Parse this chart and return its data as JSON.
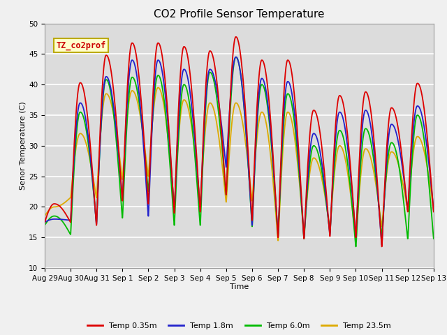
{
  "title": "CO2 Profile Sensor Temperature",
  "xlabel": "Time",
  "ylabel": "Senor Temperature (C)",
  "ylim": [
    10,
    50
  ],
  "background_color": "#dcdcdc",
  "grid_color": "#ffffff",
  "annotation_text": "TZ_co2prof",
  "annotation_bg": "#ffffcc",
  "annotation_border": "#bbaa00",
  "annotation_text_color": "#cc0000",
  "legend_entries": [
    "Temp 0.35m",
    "Temp 1.8m",
    "Temp 6.0m",
    "Temp 23.5m"
  ],
  "line_colors": [
    "#dd0000",
    "#2222cc",
    "#00bb00",
    "#ddaa00"
  ],
  "xtick_labels": [
    "Aug 29",
    "Aug 30",
    "Aug 31",
    "Sep 1",
    "Sep 2",
    "Sep 3",
    "Sep 4",
    "Sep 5",
    "Sep 6",
    "Sep 7",
    "Sep 8",
    "Sep 9",
    "Sep 10",
    "Sep 11",
    "Sep 12",
    "Sep 13"
  ],
  "n_cycles": 15,
  "peaks_red": [
    20.5,
    40.3,
    44.8,
    46.8,
    46.8,
    46.2,
    45.5,
    47.8,
    44.0,
    44.0,
    35.8,
    38.2,
    38.8,
    36.2,
    40.2
  ],
  "troughs_red": [
    17.5,
    17.5,
    17.0,
    21.0,
    20.5,
    19.0,
    19.2,
    22.0,
    17.8,
    15.0,
    14.8,
    15.2,
    15.0,
    13.5,
    19.2
  ],
  "peaks_blue": [
    18.0,
    37.0,
    41.3,
    44.0,
    44.0,
    42.5,
    42.5,
    44.5,
    41.0,
    40.5,
    32.0,
    35.5,
    35.8,
    33.5,
    36.5
  ],
  "troughs_blue": [
    17.5,
    17.8,
    17.2,
    21.3,
    18.5,
    19.5,
    19.5,
    26.5,
    17.0,
    15.5,
    15.0,
    15.5,
    15.2,
    13.8,
    19.5
  ],
  "peaks_green": [
    18.5,
    35.5,
    40.8,
    41.2,
    41.5,
    40.0,
    42.0,
    44.5,
    40.0,
    38.5,
    30.0,
    32.5,
    32.8,
    30.5,
    35.0
  ],
  "troughs_green": [
    17.0,
    15.5,
    17.5,
    18.2,
    22.5,
    17.0,
    17.0,
    22.0,
    16.8,
    15.2,
    14.8,
    15.8,
    13.5,
    15.2,
    14.8
  ],
  "peaks_orange": [
    20.0,
    32.0,
    38.5,
    39.0,
    39.5,
    37.5,
    37.0,
    37.0,
    35.5,
    35.5,
    28.0,
    30.0,
    29.5,
    29.0,
    31.5
  ],
  "troughs_orange": [
    18.5,
    21.5,
    21.5,
    24.5,
    25.0,
    20.5,
    20.5,
    20.8,
    21.0,
    14.5,
    15.5,
    16.5,
    14.5,
    16.8,
    19.5
  ]
}
